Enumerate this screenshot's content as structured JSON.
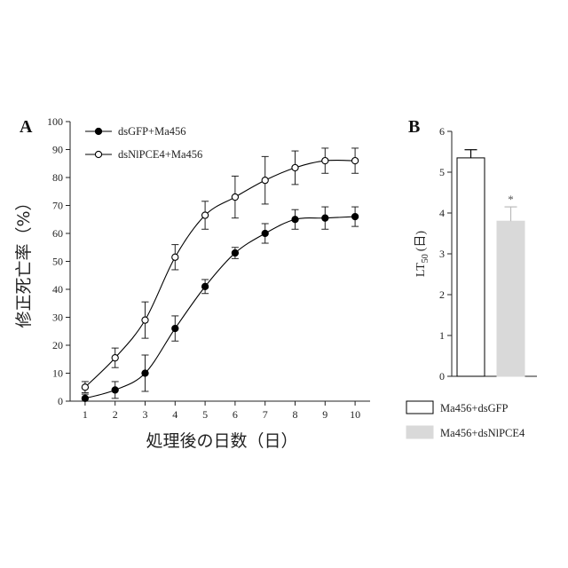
{
  "panel_a": {
    "letter": "A",
    "ylabel": "修正死亡率（%）",
    "xlabel": "処理後の日数（日）"
  },
  "panel_b": {
    "letter": "B",
    "ylabel_main": "LT",
    "ylabel_sub": "50",
    "ylabel_unit": "(日)",
    "significance": "*"
  },
  "chart_data": [
    {
      "type": "line",
      "title": "",
      "xlabel": "処理後の日数（日）",
      "ylabel": "修正死亡率（%）",
      "x": [
        1,
        2,
        3,
        4,
        5,
        6,
        7,
        8,
        9,
        10
      ],
      "xlim": [
        0.5,
        10.5
      ],
      "ylim": [
        0,
        100
      ],
      "yticks": [
        0,
        10,
        20,
        30,
        40,
        50,
        60,
        70,
        80,
        90,
        100
      ],
      "legend_position": "top-left",
      "series": [
        {
          "name": "dsGFP+Ma456",
          "marker": "filled-circle",
          "color": "#000000",
          "values": [
            1,
            4,
            10,
            26,
            41,
            53,
            60,
            65,
            65.5,
            66
          ],
          "errors": [
            1.5,
            3,
            6.5,
            4.5,
            2.5,
            2,
            3.5,
            3.5,
            4,
            3.5
          ]
        },
        {
          "name": "dsNlPCE4+Ma456",
          "marker": "open-circle",
          "color": "#000000",
          "values": [
            5,
            15.5,
            29,
            51.5,
            66.5,
            73,
            79,
            83.5,
            86,
            86
          ],
          "errors": [
            2,
            3.5,
            6.5,
            4.5,
            5,
            7.5,
            8.5,
            6,
            4.5,
            4.5
          ]
        }
      ]
    },
    {
      "type": "bar",
      "title": "",
      "xlabel": "",
      "ylabel": "LT50 (日)",
      "ylim": [
        0,
        6
      ],
      "yticks": [
        0,
        1,
        2,
        3,
        4,
        5,
        6
      ],
      "legend_position": "bottom",
      "categories": [
        "Ma456+dsGFP",
        "Ma456+dsNlPCE4"
      ],
      "values": [
        5.35,
        3.8
      ],
      "errors": [
        0.2,
        0.35
      ],
      "colors": [
        "#ffffff",
        "#d9d9d9"
      ],
      "annotations": [
        "",
        "*"
      ]
    }
  ]
}
